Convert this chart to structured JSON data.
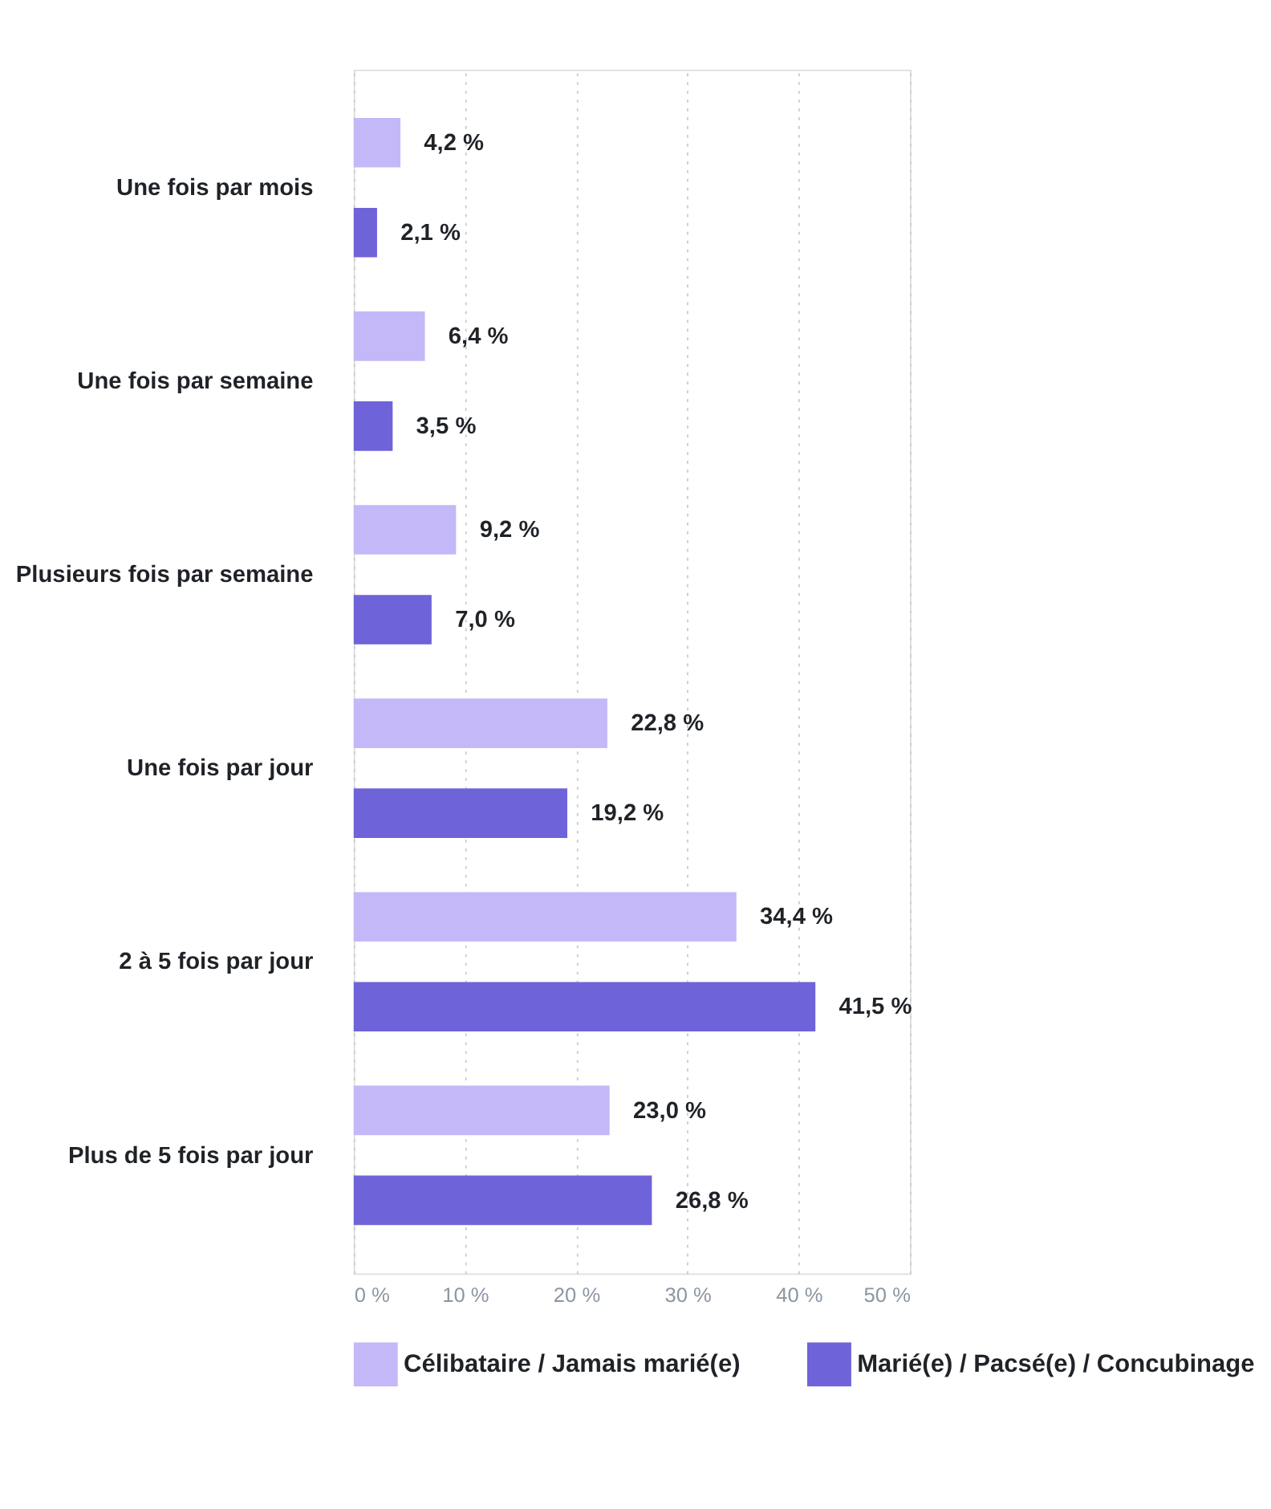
{
  "chart_data": {
    "type": "bar",
    "orientation": "horizontal",
    "categories": [
      "Une fois par mois",
      "Une fois par semaine",
      "Plusieurs fois par semaine",
      "Une fois par jour",
      "2 à 5 fois par jour",
      "Plus de 5 fois par jour"
    ],
    "series": [
      {
        "name": "Célibataire / Jamais marié(e)",
        "color": "#c4b8f8",
        "values": [
          4.2,
          6.4,
          9.2,
          22.8,
          34.4,
          23.0
        ],
        "value_labels": [
          "4,2 %",
          "6,4 %",
          "9,2 %",
          "22,8 %",
          "34,4 %",
          "23,0 %"
        ]
      },
      {
        "name": "Marié(e) / Pacsé(e) / Concubinage",
        "color": "#6e63d8",
        "values": [
          2.1,
          3.5,
          7.0,
          19.2,
          41.5,
          26.8
        ],
        "value_labels": [
          "2,1 %",
          "3,5 %",
          "7,0 %",
          "19,2 %",
          "41,5 %",
          "26,8 %"
        ]
      }
    ],
    "xlim": [
      0,
      50
    ],
    "xticks": [
      {
        "value": 0,
        "label": "0 %"
      },
      {
        "value": 10,
        "label": "10 %"
      },
      {
        "value": 20,
        "label": "20 %"
      },
      {
        "value": 30,
        "label": "30 %"
      },
      {
        "value": 40,
        "label": "40 %"
      },
      {
        "value": 50,
        "label": "50 %"
      }
    ],
    "grid": "x",
    "legend": "bottom"
  }
}
